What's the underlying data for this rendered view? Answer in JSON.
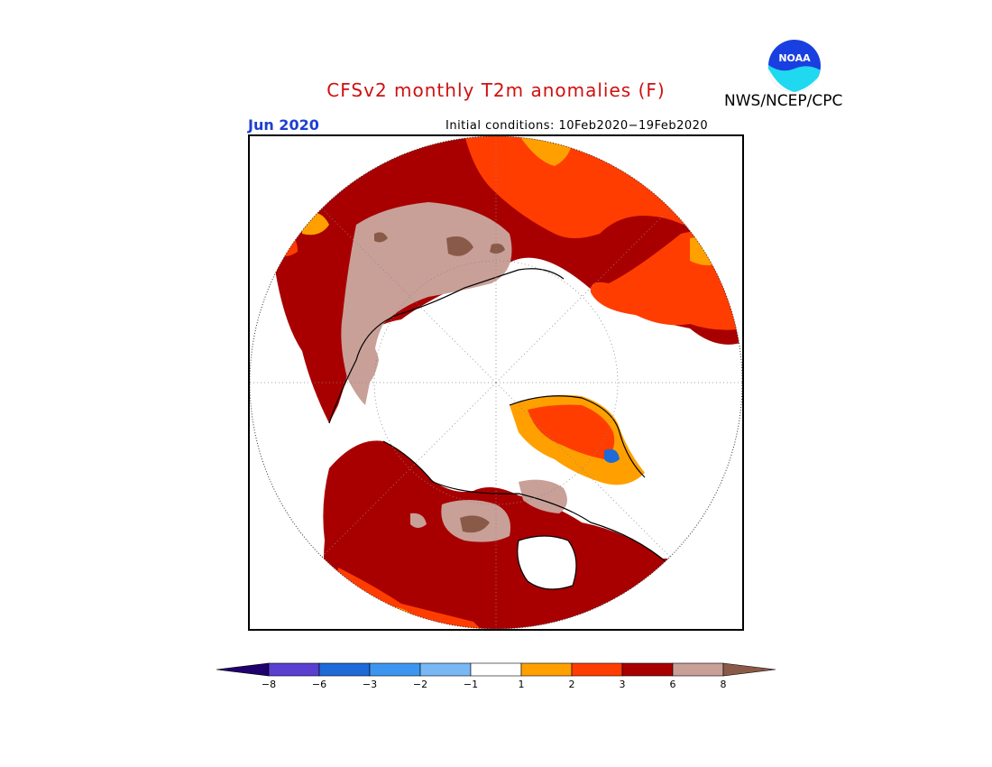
{
  "header": {
    "title": "CFSv2 monthly T2m anomalies (F)",
    "month": "Jun 2020",
    "initial_conditions": "Initial conditions: 10Feb2020−19Feb2020",
    "credit": "NWS/NCEP/CPC",
    "logo_text": "NOAA"
  },
  "legend": {
    "ticks": [
      "−8",
      "−6",
      "−3",
      "−2",
      "−1",
      "1",
      "2",
      "3",
      "6",
      "8"
    ],
    "colors": [
      "#20006e",
      "#5a3fd0",
      "#1e6ad8",
      "#3c96f0",
      "#78b8f5",
      "#ffffff",
      "#ffa000",
      "#ff3d00",
      "#a80000",
      "#c8a098",
      "#8a5a48"
    ]
  },
  "map": {
    "projection": "north polar stereographic",
    "colors": {
      "white": "#ffffff",
      "orange": "#ffa000",
      "red": "#ff3d00",
      "darkred": "#a80000",
      "tan": "#c8a098",
      "brown": "#8a5a48"
    }
  }
}
